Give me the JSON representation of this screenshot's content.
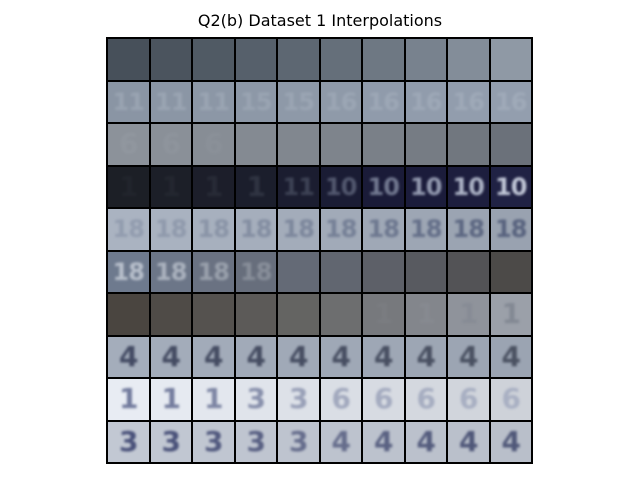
{
  "title": "Q2(b) Dataset 1 Interpolations",
  "grid": {
    "rows": 10,
    "cols": 10,
    "cells": [
      [
        {
          "bg": "#47505a",
          "fg": "#55606c",
          "glyph": "",
          "alpha": 0.0
        },
        {
          "bg": "#4b545e",
          "fg": "#5a6571",
          "glyph": "",
          "alpha": 0.0
        },
        {
          "bg": "#505a64",
          "fg": "#606b78",
          "glyph": "",
          "alpha": 0.0
        },
        {
          "bg": "#56606b",
          "fg": "#66727f",
          "glyph": "",
          "alpha": 0.0
        },
        {
          "bg": "#5d6772",
          "fg": "#6e7a87",
          "glyph": "",
          "alpha": 0.0
        },
        {
          "bg": "#656f7a",
          "fg": "#77838f",
          "glyph": "",
          "alpha": 0.0
        },
        {
          "bg": "#6e7883",
          "fg": "#7f8b98",
          "glyph": "",
          "alpha": 0.0
        },
        {
          "bg": "#78828e",
          "fg": "#8995a1",
          "glyph": "",
          "alpha": 0.0
        },
        {
          "bg": "#838d99",
          "fg": "#939fab",
          "glyph": "",
          "alpha": 0.0
        },
        {
          "bg": "#8f99a5",
          "fg": "#9eaab6",
          "glyph": "",
          "alpha": 0.0
        }
      ],
      [
        {
          "bg": "#8a95a4",
          "fg": "#a6b0bd",
          "glyph": "11",
          "alpha": 0.55
        },
        {
          "bg": "#8b96a5",
          "fg": "#a7b1be",
          "glyph": "11",
          "alpha": 0.55
        },
        {
          "bg": "#8c97a6",
          "fg": "#a8b2bf",
          "glyph": "11",
          "alpha": 0.5
        },
        {
          "bg": "#8d98a7",
          "fg": "#a9b3c0",
          "glyph": "15",
          "alpha": 0.45
        },
        {
          "bg": "#8e99a8",
          "fg": "#aab4c1",
          "glyph": "15",
          "alpha": 0.45
        },
        {
          "bg": "#8f9aa9",
          "fg": "#abb5c2",
          "glyph": "16",
          "alpha": 0.45
        },
        {
          "bg": "#909bab",
          "fg": "#acb6c3",
          "glyph": "16",
          "alpha": 0.45
        },
        {
          "bg": "#919cac",
          "fg": "#adb7c4",
          "glyph": "16",
          "alpha": 0.45
        },
        {
          "bg": "#929dad",
          "fg": "#aeb8c5",
          "glyph": "16",
          "alpha": 0.45
        },
        {
          "bg": "#939eae",
          "fg": "#afb9c6",
          "glyph": "16",
          "alpha": 0.45
        }
      ],
      [
        {
          "bg": "#8c929a",
          "fg": "#9aa0a8",
          "glyph": "6",
          "alpha": 0.35
        },
        {
          "bg": "#8a9098",
          "fg": "#989ea6",
          "glyph": "6",
          "alpha": 0.3
        },
        {
          "bg": "#878d95",
          "fg": "#959ba3",
          "glyph": "6",
          "alpha": 0.25
        },
        {
          "bg": "#848a92",
          "fg": "#92989f",
          "glyph": "",
          "alpha": 0.0
        },
        {
          "bg": "#81878f",
          "fg": "#8f959c",
          "glyph": "",
          "alpha": 0.0
        },
        {
          "bg": "#7e848c",
          "fg": "#8c9299",
          "glyph": "",
          "alpha": 0.0
        },
        {
          "bg": "#7a8088",
          "fg": "#889096",
          "glyph": "",
          "alpha": 0.0
        },
        {
          "bg": "#767c84",
          "fg": "#848a92",
          "glyph": "",
          "alpha": 0.0
        },
        {
          "bg": "#71777f",
          "fg": "#7f858d",
          "glyph": "",
          "alpha": 0.0
        },
        {
          "bg": "#6b717a",
          "fg": "#7a808a",
          "glyph": "",
          "alpha": 0.0
        }
      ],
      [
        {
          "bg": "#1c1f26",
          "fg": "#2a2e36",
          "glyph": "1",
          "alpha": 0.4
        },
        {
          "bg": "#1c1f28",
          "fg": "#2f333c",
          "glyph": "1",
          "alpha": 0.4
        },
        {
          "bg": "#1c1e2a",
          "fg": "#363b46",
          "glyph": "1",
          "alpha": 0.45
        },
        {
          "bg": "#1b1e2c",
          "fg": "#444a58",
          "glyph": "1",
          "alpha": 0.5
        },
        {
          "bg": "#1b1d30",
          "fg": "#555c6e",
          "glyph": "11",
          "alpha": 0.6
        },
        {
          "bg": "#1a1c34",
          "fg": "#6b7288",
          "glyph": "10",
          "alpha": 0.7
        },
        {
          "bg": "#1a1b38",
          "fg": "#8890a6",
          "glyph": "10",
          "alpha": 0.8
        },
        {
          "bg": "#1b1c3b",
          "fg": "#a1a8bd",
          "glyph": "10",
          "alpha": 0.9
        },
        {
          "bg": "#1d1e3e",
          "fg": "#b5bcce",
          "glyph": "10",
          "alpha": 0.95
        },
        {
          "bg": "#202244",
          "fg": "#c3c9d9",
          "glyph": "10",
          "alpha": 1.0
        }
      ],
      [
        {
          "bg": "#aab3c1",
          "fg": "#7f8aa0",
          "glyph": "18",
          "alpha": 0.55
        },
        {
          "bg": "#a9b2c0",
          "fg": "#7b869c",
          "glyph": "18",
          "alpha": 0.55
        },
        {
          "bg": "#a7b0be",
          "fg": "#778298",
          "glyph": "18",
          "alpha": 0.6
        },
        {
          "bg": "#a5aebc",
          "fg": "#727d94",
          "glyph": "18",
          "alpha": 0.65
        },
        {
          "bg": "#a3acba",
          "fg": "#6d7890",
          "glyph": "18",
          "alpha": 0.7
        },
        {
          "bg": "#a1aab8",
          "fg": "#67728b",
          "glyph": "18",
          "alpha": 0.75
        },
        {
          "bg": "#9fa8b6",
          "fg": "#616c86",
          "glyph": "18",
          "alpha": 0.8
        },
        {
          "bg": "#9da6b4",
          "fg": "#5b6682",
          "glyph": "18",
          "alpha": 0.85
        },
        {
          "bg": "#9ba4b2",
          "fg": "#56617d",
          "glyph": "18",
          "alpha": 0.9
        },
        {
          "bg": "#99a2b0",
          "fg": "#515c79",
          "glyph": "18",
          "alpha": 0.9
        }
      ],
      [
        {
          "bg": "#6e7a8e",
          "fg": "#c0c7d2",
          "glyph": "18",
          "alpha": 0.9
        },
        {
          "bg": "#6c7688",
          "fg": "#b6bdc8",
          "glyph": "18",
          "alpha": 0.85
        },
        {
          "bg": "#6a7282",
          "fg": "#a9b0ba",
          "glyph": "18",
          "alpha": 0.75
        },
        {
          "bg": "#676e7c",
          "fg": "#9aa0aa",
          "glyph": "18",
          "alpha": 0.65
        },
        {
          "bg": "#646a76",
          "fg": "#8a909a",
          "glyph": "",
          "alpha": 0.0
        },
        {
          "bg": "#616670",
          "fg": "#7a808a",
          "glyph": "",
          "alpha": 0.0
        },
        {
          "bg": "#5d6068",
          "fg": "#6c7078",
          "glyph": "",
          "alpha": 0.0
        },
        {
          "bg": "#585a60",
          "fg": "#65686e",
          "glyph": "",
          "alpha": 0.0
        },
        {
          "bg": "#535356",
          "fg": "#5e5f63",
          "glyph": "",
          "alpha": 0.0
        },
        {
          "bg": "#4c4a48",
          "fg": "#58564f",
          "glyph": "",
          "alpha": 0.0
        }
      ],
      [
        {
          "bg": "#4a4540",
          "fg": "#575048",
          "glyph": "",
          "alpha": 0.0
        },
        {
          "bg": "#4f4b47",
          "fg": "#5c5650",
          "glyph": "",
          "alpha": 0.0
        },
        {
          "bg": "#55524f",
          "fg": "#625d58",
          "glyph": "",
          "alpha": 0.0
        },
        {
          "bg": "#5c5a58",
          "fg": "#696662",
          "glyph": "",
          "alpha": 0.0
        },
        {
          "bg": "#646462",
          "fg": "#71706d",
          "glyph": "",
          "alpha": 0.0
        },
        {
          "bg": "#6d6e6f",
          "fg": "#7b7c7d",
          "glyph": "",
          "alpha": 0.0
        },
        {
          "bg": "#77797d",
          "fg": "#85888d",
          "glyph": "1",
          "alpha": 0.25
        },
        {
          "bg": "#83868c",
          "fg": "#8f939a",
          "glyph": "1",
          "alpha": 0.3
        },
        {
          "bg": "#8f939b",
          "fg": "#7d838e",
          "glyph": "1",
          "alpha": 0.45
        },
        {
          "bg": "#9ba0a9",
          "fg": "#6f7682",
          "glyph": "1",
          "alpha": 0.55
        }
      ],
      [
        {
          "bg": "#a4adbb",
          "fg": "#39405a",
          "glyph": "4",
          "alpha": 0.9
        },
        {
          "bg": "#a3acba",
          "fg": "#3a4159",
          "glyph": "4",
          "alpha": 0.9
        },
        {
          "bg": "#a2abb9",
          "fg": "#3b4259",
          "glyph": "4",
          "alpha": 0.9
        },
        {
          "bg": "#a1aab8",
          "fg": "#3c4359",
          "glyph": "4",
          "alpha": 0.9
        },
        {
          "bg": "#a0a9b7",
          "fg": "#3d4459",
          "glyph": "4",
          "alpha": 0.9
        },
        {
          "bg": "#9fa8b6",
          "fg": "#3e4559",
          "glyph": "4",
          "alpha": 0.9
        },
        {
          "bg": "#9ea7b5",
          "fg": "#3f4659",
          "glyph": "4",
          "alpha": 0.9
        },
        {
          "bg": "#9da6b4",
          "fg": "#404759",
          "glyph": "4",
          "alpha": 0.9
        },
        {
          "bg": "#9ca5b3",
          "fg": "#414859",
          "glyph": "4",
          "alpha": 0.9
        },
        {
          "bg": "#9ba4b2",
          "fg": "#424959",
          "glyph": "4",
          "alpha": 0.9
        }
      ],
      [
        {
          "bg": "#e8ecf3",
          "fg": "#4a5480",
          "glyph": "1",
          "alpha": 0.75
        },
        {
          "bg": "#e6eaf1",
          "fg": "#4d5781",
          "glyph": "1",
          "alpha": 0.75
        },
        {
          "bg": "#e3e7ee",
          "fg": "#525c84",
          "glyph": "1",
          "alpha": 0.7
        },
        {
          "bg": "#e0e4eb",
          "fg": "#59638a",
          "glyph": "3",
          "alpha": 0.65
        },
        {
          "bg": "#dde1e8",
          "fg": "#616b90",
          "glyph": "3",
          "alpha": 0.55
        },
        {
          "bg": "#dadee5",
          "fg": "#6a7497",
          "glyph": "6",
          "alpha": 0.5
        },
        {
          "bg": "#d7dbe2",
          "fg": "#727c9e",
          "glyph": "6",
          "alpha": 0.5
        },
        {
          "bg": "#d4d8df",
          "fg": "#7983a3",
          "glyph": "6",
          "alpha": 0.5
        },
        {
          "bg": "#d1d5dc",
          "fg": "#7f89a8",
          "glyph": "6",
          "alpha": 0.5
        },
        {
          "bg": "#ced2d9",
          "fg": "#848ead",
          "glyph": "6",
          "alpha": 0.5
        }
      ],
      [
        {
          "bg": "#c2c8d3",
          "fg": "#3c4470",
          "glyph": "3",
          "alpha": 0.9
        },
        {
          "bg": "#c1c7d2",
          "fg": "#3d4570",
          "glyph": "3",
          "alpha": 0.9
        },
        {
          "bg": "#c0c6d1",
          "fg": "#3e4670",
          "glyph": "3",
          "alpha": 0.85
        },
        {
          "bg": "#bfc5d0",
          "fg": "#3f4770",
          "glyph": "3",
          "alpha": 0.8
        },
        {
          "bg": "#bec4cf",
          "fg": "#404870",
          "glyph": "3",
          "alpha": 0.7
        },
        {
          "bg": "#bdc3ce",
          "fg": "#414970",
          "glyph": "4",
          "alpha": 0.7
        },
        {
          "bg": "#bcc2cd",
          "fg": "#424a70",
          "glyph": "4",
          "alpha": 0.8
        },
        {
          "bg": "#bbc1cc",
          "fg": "#434b70",
          "glyph": "4",
          "alpha": 0.85
        },
        {
          "bg": "#bac0cb",
          "fg": "#444c70",
          "glyph": "4",
          "alpha": 0.9
        },
        {
          "bg": "#b9bfca",
          "fg": "#454d70",
          "glyph": "4",
          "alpha": 0.9
        }
      ]
    ]
  }
}
